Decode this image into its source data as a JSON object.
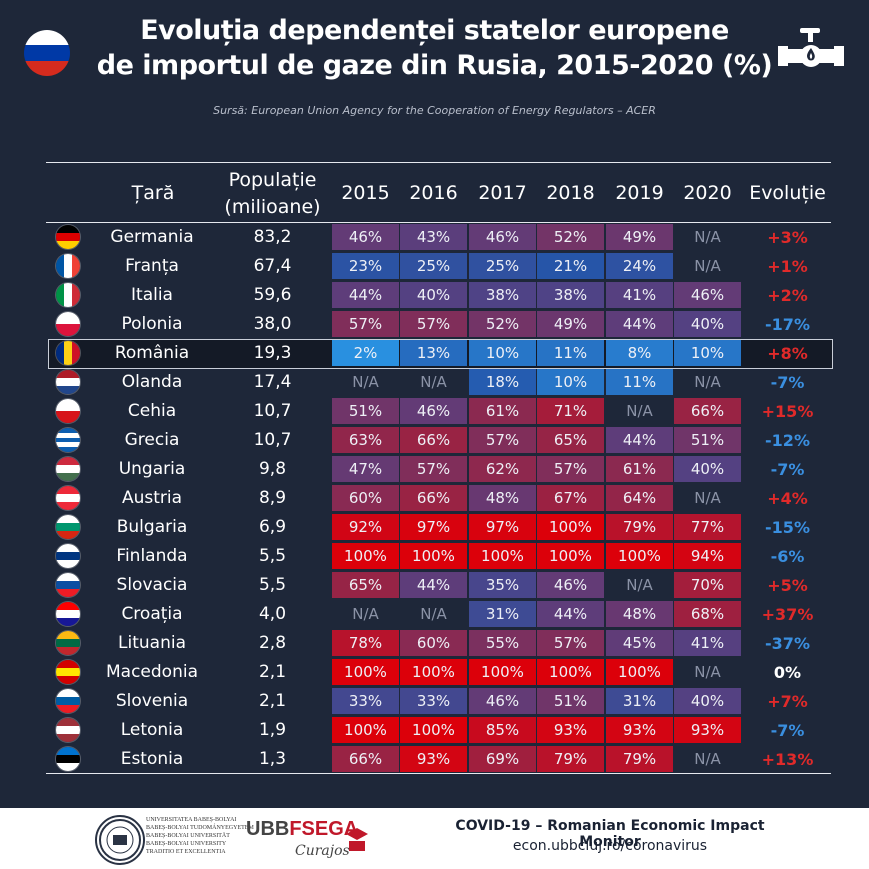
{
  "header": {
    "title_line1": "Evoluția dependenței statelor europene",
    "title_line2": "de importul de gaze din Rusia, 2015-2020 (%)",
    "source": "Sursă: European Union Agency for the Cooperation of Energy Regulators – ACER"
  },
  "table": {
    "col_country": "Țară",
    "col_population_line1": "Populație",
    "col_population_line2": "(milioane)",
    "col_evolution": "Evoluție"
  },
  "chart_data": {
    "type": "table",
    "title": "Evoluția dependenței statelor europene de importul de gaze din Rusia, 2015-2020 (%)",
    "years": [
      "2015",
      "2016",
      "2017",
      "2018",
      "2019",
      "2020"
    ],
    "highlighted_row": "România",
    "rows": [
      {
        "country": "Germania",
        "population": "83,2",
        "values": [
          46,
          43,
          46,
          52,
          49,
          null
        ],
        "evolution": "+3%"
      },
      {
        "country": "Franța",
        "population": "67,4",
        "values": [
          23,
          25,
          25,
          21,
          24,
          null
        ],
        "evolution": "+1%"
      },
      {
        "country": "Italia",
        "population": "59,6",
        "values": [
          44,
          40,
          38,
          38,
          41,
          46
        ],
        "evolution": "+2%"
      },
      {
        "country": "Polonia",
        "population": "38,0",
        "values": [
          57,
          57,
          52,
          49,
          44,
          40
        ],
        "evolution": "-17%"
      },
      {
        "country": "România",
        "population": "19,3",
        "values": [
          2,
          13,
          10,
          11,
          8,
          10
        ],
        "evolution": "+8%"
      },
      {
        "country": "Olanda",
        "population": "17,4",
        "values": [
          null,
          null,
          18,
          10,
          11,
          null
        ],
        "evolution": "-7%"
      },
      {
        "country": "Cehia",
        "population": "10,7",
        "values": [
          51,
          46,
          61,
          71,
          null,
          66
        ],
        "evolution": "+15%"
      },
      {
        "country": "Grecia",
        "population": "10,7",
        "values": [
          63,
          66,
          57,
          65,
          44,
          51
        ],
        "evolution": "-12%"
      },
      {
        "country": "Ungaria",
        "population": "9,8",
        "values": [
          47,
          57,
          62,
          57,
          61,
          40
        ],
        "evolution": "-7%"
      },
      {
        "country": "Austria",
        "population": "8,9",
        "values": [
          60,
          66,
          48,
          67,
          64,
          null
        ],
        "evolution": "+4%"
      },
      {
        "country": "Bulgaria",
        "population": "6,9",
        "values": [
          92,
          97,
          97,
          100,
          79,
          77
        ],
        "evolution": "-15%"
      },
      {
        "country": "Finlanda",
        "population": "5,5",
        "values": [
          100,
          100,
          100,
          100,
          100,
          94
        ],
        "evolution": "-6%"
      },
      {
        "country": "Slovacia",
        "population": "5,5",
        "values": [
          65,
          44,
          35,
          46,
          null,
          70
        ],
        "evolution": "+5%"
      },
      {
        "country": "Croația",
        "population": "4,0",
        "values": [
          null,
          null,
          31,
          44,
          48,
          68
        ],
        "evolution": "+37%"
      },
      {
        "country": "Lituania",
        "population": "2,8",
        "values": [
          78,
          60,
          55,
          57,
          45,
          41
        ],
        "evolution": "-37%"
      },
      {
        "country": "Macedonia",
        "population": "2,1",
        "values": [
          100,
          100,
          100,
          100,
          100,
          null
        ],
        "evolution": "0%"
      },
      {
        "country": "Slovenia",
        "population": "2,1",
        "values": [
          33,
          33,
          46,
          51,
          31,
          40
        ],
        "evolution": "+7%"
      },
      {
        "country": "Letonia",
        "population": "1,9",
        "values": [
          100,
          100,
          85,
          93,
          93,
          93
        ],
        "evolution": "-7%"
      },
      {
        "country": "Estonia",
        "population": "1,3",
        "values": [
          66,
          93,
          69,
          79,
          79,
          null
        ],
        "evolution": "+13%"
      }
    ],
    "na_label": "N/A",
    "colors": {
      "background": "#1e2739",
      "positive_evolution": "#e02a2a",
      "negative_evolution": "#3a8fe0",
      "neutral_evolution": "#ffffff",
      "na_text": "#8a92a6"
    }
  },
  "flags": {
    "Germania": {
      "type": "h",
      "colors": [
        "#000000",
        "#dd0000",
        "#ffce00"
      ]
    },
    "Franța": {
      "type": "v",
      "colors": [
        "#0055a4",
        "#ffffff",
        "#ef4135"
      ]
    },
    "Italia": {
      "type": "v",
      "colors": [
        "#009246",
        "#ffffff",
        "#ce2b37"
      ]
    },
    "Polonia": {
      "type": "h",
      "colors": [
        "#ffffff",
        "#dc143c"
      ]
    },
    "România": {
      "type": "v",
      "colors": [
        "#002b7f",
        "#fcd116",
        "#ce1126"
      ]
    },
    "Olanda": {
      "type": "h",
      "colors": [
        "#ae1c28",
        "#ffffff",
        "#21468b"
      ]
    },
    "Cehia": {
      "type": "h",
      "colors": [
        "#ffffff",
        "#d7141a"
      ]
    },
    "Grecia": {
      "type": "h",
      "colors": [
        "#0d5eaf",
        "#ffffff",
        "#0d5eaf",
        "#ffffff",
        "#0d5eaf"
      ]
    },
    "Ungaria": {
      "type": "h",
      "colors": [
        "#cd2a3e",
        "#ffffff",
        "#436f4d"
      ]
    },
    "Austria": {
      "type": "h",
      "colors": [
        "#ed2939",
        "#ffffff",
        "#ed2939"
      ]
    },
    "Bulgaria": {
      "type": "h",
      "colors": [
        "#ffffff",
        "#00966e",
        "#d62612"
      ]
    },
    "Finlanda": {
      "type": "h",
      "colors": [
        "#ffffff",
        "#003580",
        "#ffffff"
      ]
    },
    "Slovacia": {
      "type": "h",
      "colors": [
        "#ffffff",
        "#0b4ea2",
        "#ee1c25"
      ]
    },
    "Croația": {
      "type": "h",
      "colors": [
        "#ff0000",
        "#ffffff",
        "#171796"
      ]
    },
    "Lituania": {
      "type": "h",
      "colors": [
        "#fdb913",
        "#006a44",
        "#c1272d"
      ]
    },
    "Macedonia": {
      "type": "h",
      "colors": [
        "#d20000",
        "#ffe600",
        "#d20000"
      ]
    },
    "Slovenia": {
      "type": "h",
      "colors": [
        "#ffffff",
        "#005da4",
        "#ed1c24"
      ]
    },
    "Letonia": {
      "type": "h",
      "colors": [
        "#9e3039",
        "#ffffff",
        "#9e3039"
      ]
    },
    "Estonia": {
      "type": "h",
      "colors": [
        "#0072ce",
        "#000000",
        "#ffffff"
      ]
    },
    "Rusia": {
      "type": "h",
      "colors": [
        "#ffffff",
        "#0039a6",
        "#d52b1e"
      ]
    }
  },
  "footer": {
    "monitor_title": "COVID-19 – Romanian Economic Impact Monitor",
    "url": "econ.ubbcluj.ro/coronavirus",
    "ubb_lines": [
      "UNIVERSITATEA BABEȘ-BOLYAI",
      "BABEȘ-BOLYAI TUDOMÁNYEGYETEM",
      "BABEȘ-BOLYAI UNIVERSITÄT",
      "BABEȘ-BOLYAI UNIVERSITY",
      "TRADITIO ET EXCELLENTIA"
    ],
    "fsega_logo_ubb": "UBB",
    "fsega_logo_fsega": "FSEGA",
    "curajos": "Curajos",
    "fsega_badge": "FSEGA"
  }
}
